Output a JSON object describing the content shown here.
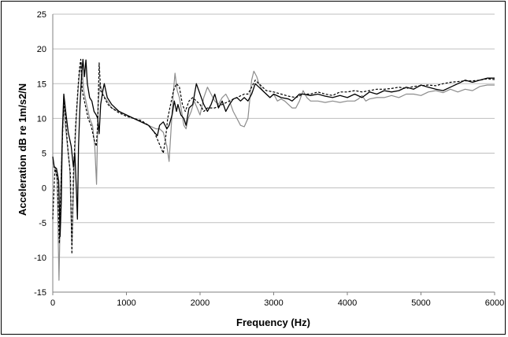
{
  "chart_data": {
    "type": "line",
    "xlabel": "Frequency (Hz)",
    "ylabel": "Acceleration dB re 1m/s2/N",
    "xlim": [
      0,
      6000
    ],
    "ylim": [
      -15,
      25
    ],
    "xticks": [
      0,
      1000,
      2000,
      3000,
      4000,
      5000,
      6000
    ],
    "yticks": [
      -15,
      -10,
      -5,
      0,
      5,
      10,
      15,
      20,
      25
    ],
    "grid": "horizontal",
    "legend": "none",
    "series": [
      {
        "style": "solid-black",
        "color": "#000000",
        "points": [
          [
            0,
            4.5
          ],
          [
            20,
            3
          ],
          [
            50,
            2.8
          ],
          [
            80,
            1
          ],
          [
            100,
            -7
          ],
          [
            115,
            -2
          ],
          [
            130,
            8
          ],
          [
            150,
            13.5
          ],
          [
            175,
            11
          ],
          [
            210,
            8
          ],
          [
            250,
            6
          ],
          [
            280,
            3
          ],
          [
            300,
            5
          ],
          [
            320,
            0
          ],
          [
            335,
            -4.5
          ],
          [
            350,
            6
          ],
          [
            370,
            12
          ],
          [
            390,
            16
          ],
          [
            410,
            18.5
          ],
          [
            430,
            16
          ],
          [
            450,
            18.4
          ],
          [
            470,
            15
          ],
          [
            500,
            13
          ],
          [
            530,
            12.5
          ],
          [
            560,
            11
          ],
          [
            590,
            10.5
          ],
          [
            610,
            10
          ],
          [
            630,
            7.8
          ],
          [
            650,
            12
          ],
          [
            680,
            14
          ],
          [
            700,
            15
          ],
          [
            740,
            13
          ],
          [
            800,
            12
          ],
          [
            900,
            11
          ],
          [
            1000,
            10.5
          ],
          [
            1100,
            10
          ],
          [
            1200,
            9.5
          ],
          [
            1300,
            9
          ],
          [
            1380,
            8
          ],
          [
            1420,
            7.5
          ],
          [
            1450,
            9
          ],
          [
            1500,
            9.5
          ],
          [
            1550,
            8.5
          ],
          [
            1580,
            9
          ],
          [
            1620,
            10.5
          ],
          [
            1650,
            12.5
          ],
          [
            1680,
            11
          ],
          [
            1700,
            12
          ],
          [
            1740,
            10.5
          ],
          [
            1780,
            10
          ],
          [
            1810,
            9
          ],
          [
            1850,
            11.5
          ],
          [
            1900,
            12
          ],
          [
            1950,
            15
          ],
          [
            2000,
            13.5
          ],
          [
            2050,
            12
          ],
          [
            2100,
            11
          ],
          [
            2150,
            12
          ],
          [
            2200,
            13.5
          ],
          [
            2250,
            11.5
          ],
          [
            2300,
            12.5
          ],
          [
            2350,
            11
          ],
          [
            2400,
            12
          ],
          [
            2450,
            12.8
          ],
          [
            2500,
            13
          ],
          [
            2550,
            12.5
          ],
          [
            2600,
            13
          ],
          [
            2650,
            12.5
          ],
          [
            2700,
            13.5
          ],
          [
            2750,
            15
          ],
          [
            2800,
            14.5
          ],
          [
            2850,
            14
          ],
          [
            2900,
            13.5
          ],
          [
            2950,
            13
          ],
          [
            3000,
            13.5
          ],
          [
            3100,
            13
          ],
          [
            3200,
            12.8
          ],
          [
            3250,
            12.5
          ],
          [
            3300,
            13
          ],
          [
            3350,
            13.5
          ],
          [
            3400,
            13.5
          ],
          [
            3500,
            13.3
          ],
          [
            3600,
            13.5
          ],
          [
            3700,
            13.2
          ],
          [
            3800,
            13
          ],
          [
            3900,
            13.3
          ],
          [
            4000,
            13
          ],
          [
            4100,
            13.5
          ],
          [
            4200,
            13
          ],
          [
            4300,
            13.8
          ],
          [
            4400,
            13.5
          ],
          [
            4500,
            14
          ],
          [
            4600,
            13.8
          ],
          [
            4700,
            14
          ],
          [
            4800,
            14.5
          ],
          [
            4900,
            14.2
          ],
          [
            5000,
            14.8
          ],
          [
            5100,
            14.5
          ],
          [
            5200,
            14.2
          ],
          [
            5300,
            14
          ],
          [
            5400,
            14.5
          ],
          [
            5500,
            15
          ],
          [
            5600,
            15.5
          ],
          [
            5700,
            15.2
          ],
          [
            5800,
            15.5
          ],
          [
            5900,
            15.8
          ],
          [
            6000,
            15.8
          ]
        ]
      },
      {
        "style": "dashed-black",
        "color": "#000000",
        "points": [
          [
            0,
            -4.5
          ],
          [
            30,
            3
          ],
          [
            60,
            1.5
          ],
          [
            90,
            -8
          ],
          [
            110,
            0
          ],
          [
            140,
            10
          ],
          [
            160,
            12.5
          ],
          [
            180,
            9
          ],
          [
            210,
            5
          ],
          [
            240,
            2
          ],
          [
            260,
            -9.5
          ],
          [
            280,
            2
          ],
          [
            310,
            9
          ],
          [
            340,
            14
          ],
          [
            360,
            17
          ],
          [
            380,
            18.5
          ],
          [
            400,
            14
          ],
          [
            440,
            12
          ],
          [
            480,
            10
          ],
          [
            520,
            9
          ],
          [
            560,
            7
          ],
          [
            590,
            6
          ],
          [
            610,
            9
          ],
          [
            630,
            18
          ],
          [
            650,
            14
          ],
          [
            700,
            13
          ],
          [
            750,
            12
          ],
          [
            800,
            11.5
          ],
          [
            900,
            10.8
          ],
          [
            1000,
            10.3
          ],
          [
            1100,
            10
          ],
          [
            1200,
            9.7
          ],
          [
            1300,
            9
          ],
          [
            1380,
            8
          ],
          [
            1420,
            7
          ],
          [
            1460,
            6
          ],
          [
            1500,
            5
          ],
          [
            1530,
            7
          ],
          [
            1560,
            10
          ],
          [
            1600,
            12
          ],
          [
            1640,
            14
          ],
          [
            1680,
            15
          ],
          [
            1720,
            14.5
          ],
          [
            1760,
            12
          ],
          [
            1800,
            11
          ],
          [
            1850,
            12.5
          ],
          [
            1900,
            13
          ],
          [
            1950,
            12.5
          ],
          [
            2000,
            12
          ],
          [
            2050,
            11
          ],
          [
            2100,
            11.5
          ],
          [
            2200,
            11.5
          ],
          [
            2300,
            12
          ],
          [
            2400,
            12.5
          ],
          [
            2500,
            13
          ],
          [
            2600,
            13.5
          ],
          [
            2650,
            13.5
          ],
          [
            2700,
            14.5
          ],
          [
            2750,
            15.5
          ],
          [
            2800,
            15
          ],
          [
            2900,
            14
          ],
          [
            3000,
            13.8
          ],
          [
            3100,
            13.5
          ],
          [
            3200,
            13.2
          ],
          [
            3300,
            13
          ],
          [
            3400,
            13.5
          ],
          [
            3500,
            13.5
          ],
          [
            3600,
            13.8
          ],
          [
            3700,
            13.5
          ],
          [
            3800,
            13.3
          ],
          [
            3900,
            13.8
          ],
          [
            4000,
            13.8
          ],
          [
            4100,
            14
          ],
          [
            4200,
            13.8
          ],
          [
            4300,
            14
          ],
          [
            4400,
            14.2
          ],
          [
            4500,
            14.2
          ],
          [
            4600,
            14.3
          ],
          [
            4700,
            14.5
          ],
          [
            4800,
            14.3
          ],
          [
            4900,
            14.6
          ],
          [
            5000,
            14.7
          ],
          [
            5100,
            14.8
          ],
          [
            5200,
            14.7
          ],
          [
            5300,
            15
          ],
          [
            5400,
            15.2
          ],
          [
            5500,
            15.3
          ],
          [
            5600,
            15.4
          ],
          [
            5700,
            15.4
          ],
          [
            5800,
            15.5
          ],
          [
            5900,
            15.7
          ],
          [
            6000,
            15.6
          ]
        ]
      },
      {
        "style": "solid-gray",
        "color": "#8c8c8c",
        "points": [
          [
            0,
            3
          ],
          [
            30,
            3
          ],
          [
            60,
            1
          ],
          [
            85,
            -13.3
          ],
          [
            100,
            -5
          ],
          [
            120,
            5
          ],
          [
            150,
            12
          ],
          [
            170,
            9
          ],
          [
            200,
            6
          ],
          [
            230,
            3
          ],
          [
            260,
            -8
          ],
          [
            290,
            3
          ],
          [
            320,
            10
          ],
          [
            350,
            15
          ],
          [
            370,
            17
          ],
          [
            390,
            18
          ],
          [
            420,
            14
          ],
          [
            460,
            12
          ],
          [
            500,
            10
          ],
          [
            540,
            9
          ],
          [
            570,
            6
          ],
          [
            595,
            0.5
          ],
          [
            615,
            12
          ],
          [
            640,
            15
          ],
          [
            680,
            13.5
          ],
          [
            740,
            12.5
          ],
          [
            800,
            11.5
          ],
          [
            900,
            11
          ],
          [
            1000,
            10.5
          ],
          [
            1100,
            10
          ],
          [
            1200,
            9.5
          ],
          [
            1300,
            9
          ],
          [
            1400,
            8.5
          ],
          [
            1450,
            8.5
          ],
          [
            1500,
            8
          ],
          [
            1550,
            6
          ],
          [
            1580,
            3.8
          ],
          [
            1610,
            9
          ],
          [
            1640,
            14
          ],
          [
            1660,
            16.5
          ],
          [
            1690,
            14
          ],
          [
            1720,
            13
          ],
          [
            1750,
            11
          ],
          [
            1780,
            9
          ],
          [
            1810,
            8.5
          ],
          [
            1840,
            10
          ],
          [
            1880,
            11
          ],
          [
            1920,
            12.5
          ],
          [
            1960,
            11.5
          ],
          [
            2000,
            10.5
          ],
          [
            2050,
            13
          ],
          [
            2100,
            14.5
          ],
          [
            2150,
            13.5
          ],
          [
            2200,
            12.5
          ],
          [
            2250,
            12
          ],
          [
            2300,
            13
          ],
          [
            2350,
            13.5
          ],
          [
            2400,
            12.5
          ],
          [
            2450,
            11
          ],
          [
            2500,
            10
          ],
          [
            2550,
            9
          ],
          [
            2600,
            8.8
          ],
          [
            2650,
            10
          ],
          [
            2700,
            15.5
          ],
          [
            2730,
            16.8
          ],
          [
            2770,
            16
          ],
          [
            2800,
            15
          ],
          [
            2850,
            14
          ],
          [
            2900,
            13.5
          ],
          [
            2950,
            13
          ],
          [
            3000,
            13.5
          ],
          [
            3050,
            12.5
          ],
          [
            3100,
            12.8
          ],
          [
            3150,
            12.5
          ],
          [
            3200,
            12
          ],
          [
            3250,
            11.5
          ],
          [
            3300,
            11.5
          ],
          [
            3350,
            12.5
          ],
          [
            3400,
            14
          ],
          [
            3450,
            13
          ],
          [
            3500,
            12.5
          ],
          [
            3600,
            12.5
          ],
          [
            3700,
            12.3
          ],
          [
            3800,
            12.5
          ],
          [
            3900,
            12.3
          ],
          [
            4000,
            12.5
          ],
          [
            4100,
            12.5
          ],
          [
            4150,
            12.8
          ],
          [
            4200,
            13.3
          ],
          [
            4250,
            12.5
          ],
          [
            4300,
            12.8
          ],
          [
            4400,
            13
          ],
          [
            4500,
            13
          ],
          [
            4600,
            13.3
          ],
          [
            4700,
            13
          ],
          [
            4800,
            13.5
          ],
          [
            4900,
            13.5
          ],
          [
            5000,
            13.3
          ],
          [
            5100,
            13.8
          ],
          [
            5200,
            14
          ],
          [
            5300,
            13.7
          ],
          [
            5400,
            14.2
          ],
          [
            5500,
            13.8
          ],
          [
            5600,
            14.2
          ],
          [
            5700,
            14
          ],
          [
            5800,
            14.6
          ],
          [
            5900,
            14.8
          ],
          [
            6000,
            14.8
          ]
        ]
      }
    ]
  }
}
